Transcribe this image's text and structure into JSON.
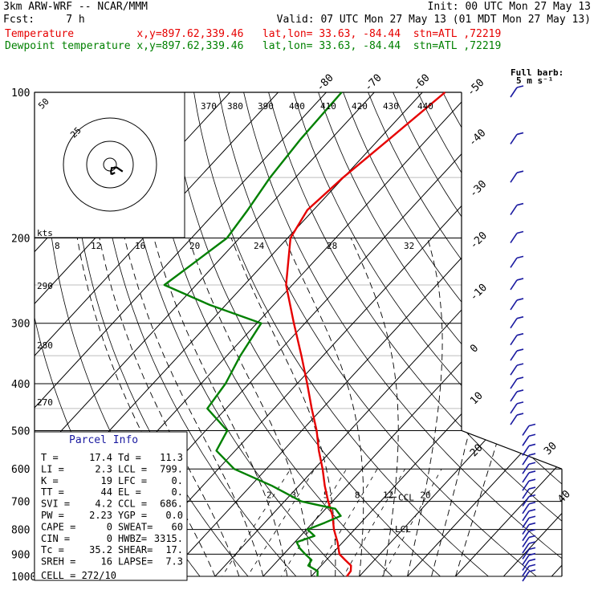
{
  "header": {
    "line1_left": "3km ARW-WRF -- NCAR/MMM",
    "line1_right": "Init: 00 UTC Mon 27 May 13",
    "line2_left": "Fcst:     7 h",
    "line2_right": "Valid: 07 UTC Mon 27 May 13 (01 MDT Mon 27 May 13)",
    "line3": "Temperature          x,y=897.62,339.46   lat,lon= 33.63, -84.44  stn=ATL ,72219",
    "line4": "Dewpoint temperature x,y=897.62,339.46   lat,lon= 33.63, -84.44  stn=ATL ,72219"
  },
  "colors": {
    "temperature": "#e60000",
    "dewpoint": "#008000",
    "wind": "#1a1aa0",
    "grid": "#000000"
  },
  "barb_legend": {
    "title": "Full barb:",
    "value": "5 m s⁻¹"
  },
  "hodograph": {
    "units_label": "kts",
    "ring_labels": [
      "50",
      "25"
    ],
    "speed_ticks": [
      "8",
      "12",
      "16",
      "20",
      "24",
      "28",
      "32"
    ]
  },
  "theta_labels": [
    "370",
    "380",
    "390",
    "400",
    "410",
    "420",
    "430",
    "440"
  ],
  "theta_side_labels": [
    "290",
    "280",
    "270"
  ],
  "mixing_ratio_labels": [
    "2",
    "3",
    "5",
    "8",
    "12",
    "20"
  ],
  "ccl_label": "CCL",
  "lcl_label": "LCL",
  "parcel_info": {
    "title": "Parcel Info",
    "rows": [
      [
        "T  =",
        "17.4",
        "Td =",
        "11.3"
      ],
      [
        "LI =",
        "2.3",
        "LCL =",
        "799."
      ],
      [
        "K  =",
        "19",
        "LFC =",
        "0."
      ],
      [
        "TT =",
        "44",
        "EL  =",
        "0."
      ],
      [
        "SVI =",
        "4.2",
        "CCL =",
        "686."
      ],
      [
        "PW =",
        "2.23",
        "YGP =",
        "0.0"
      ],
      [
        "CAPE =",
        "0",
        "SWEAT=",
        "60"
      ],
      [
        "CIN =",
        "0",
        "HWBZ=",
        "3315."
      ],
      [
        "Tc =",
        "35.2",
        "SHEAR=",
        "17."
      ],
      [
        "SREH =",
        "16",
        "LAPSE=",
        "7.3"
      ]
    ],
    "cell": "CELL = 272/10"
  },
  "chart_data": {
    "type": "line",
    "title": "",
    "xlabel": "",
    "ylabel": "",
    "y_scale": "log-pressure",
    "y_axis_ticks_hPa": [
      100,
      200,
      300,
      400,
      500,
      600,
      700,
      800,
      900,
      1000
    ],
    "x_axis_ticks_degC": [
      -80,
      -70,
      -60,
      -50,
      -40,
      -30,
      -20,
      -10,
      0,
      10,
      20,
      30,
      40
    ],
    "series": [
      {
        "name": "Temperature",
        "pressure_hPa": [
          1000,
          975,
          950,
          925,
          900,
          850,
          800,
          750,
          700,
          650,
          600,
          550,
          500,
          450,
          400,
          350,
          300,
          250,
          200,
          175,
          150,
          125,
          100
        ],
        "temp_degC": [
          17.4,
          17.2,
          16.2,
          13.9,
          11.6,
          8.9,
          5.7,
          2.8,
          -0.9,
          -4.6,
          -8.3,
          -12.6,
          -16.9,
          -22.2,
          -27.9,
          -34.5,
          -42.3,
          -51.3,
          -59.4,
          -61.3,
          -60.1,
          -57.9,
          -55.3
        ]
      },
      {
        "name": "Dewpoint temperature",
        "pressure_hPa": [
          1000,
          975,
          950,
          925,
          900,
          875,
          850,
          825,
          800,
          775,
          750,
          725,
          700,
          650,
          600,
          550,
          500,
          450,
          400,
          350,
          300,
          275,
          250,
          225,
          200,
          175,
          150,
          125,
          100
        ],
        "temp_degC": [
          11.3,
          10.3,
          7.3,
          6.9,
          4.5,
          2.2,
          0.4,
          2.9,
          0.2,
          2.5,
          4.5,
          2.0,
          -6.5,
          -15.6,
          -26.7,
          -33.9,
          -35.5,
          -43.9,
          -44.9,
          -47.2,
          -49.1,
          -63.3,
          -76.6,
          -74.7,
          -72.6,
          -73.7,
          -75.3,
          -76.3,
          -76.8
        ]
      }
    ],
    "hodograph_uv_kt": [
      [
        13.6,
        7.5
      ],
      [
        7.4,
        3.2
      ],
      [
        4.8,
        3.1
      ],
      [
        4.5,
        3.5
      ],
      [
        3.9,
        3.7
      ],
      [
        3.0,
        3.6
      ],
      [
        1.8,
        3.6
      ],
      [
        1.6,
        5.3
      ],
      [
        1.0,
        6.9
      ],
      [
        1.4,
        9.9
      ],
      [
        2.7,
        10.1
      ],
      [
        3.7,
        9.4
      ],
      [
        5.4,
        8.7
      ]
    ]
  }
}
